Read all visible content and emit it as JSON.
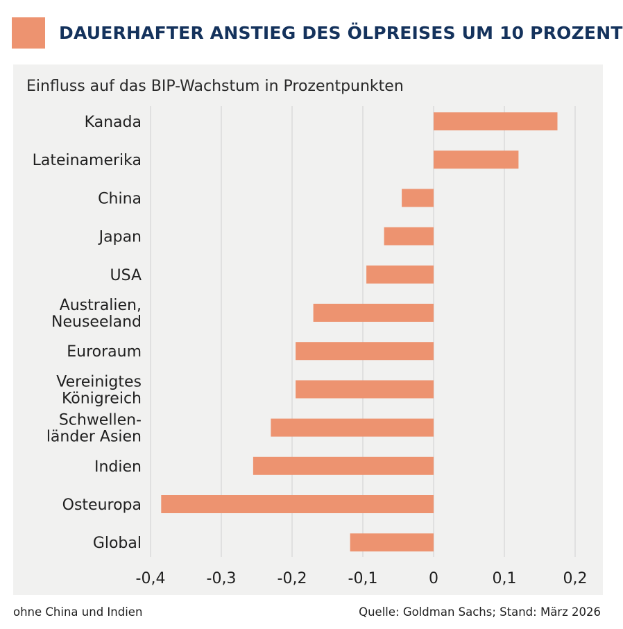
{
  "title": "DAUERHAFTER ANSTIEG DES ÖLPREISES UM 10 PROZENT",
  "subtitle": "Einfluss auf das BIP-Wachstum in Prozentpunkten",
  "footnote_left": "ohne China und Indien",
  "footnote_right": "Quelle: Goldman Sachs; Stand: März 2026",
  "colors": {
    "bar": "#ED9370",
    "title": "#14325C",
    "panel": "#F1F1F0",
    "grid": "#CFCFCF"
  },
  "chart_data": {
    "type": "bar",
    "orientation": "horizontal",
    "title": "DAUERHAFTER ANSTIEG DES ÖLPREISES UM 10 PROZENT",
    "xlabel": "Einfluss auf das BIP-Wachstum in Prozentpunkten",
    "categories": [
      [
        "Kanada"
      ],
      [
        "Lateinamerika"
      ],
      [
        "China"
      ],
      [
        "Japan"
      ],
      [
        "USA"
      ],
      [
        "Australien,",
        "Neuseeland"
      ],
      [
        "Euroraum"
      ],
      [
        "Vereinigtes",
        "Königreich"
      ],
      [
        "Schwellen-",
        "länder Asien"
      ],
      [
        "Indien"
      ],
      [
        "Osteuropa"
      ],
      [
        "Global"
      ]
    ],
    "values": [
      0.175,
      0.12,
      -0.045,
      -0.07,
      -0.095,
      -0.17,
      -0.195,
      -0.195,
      -0.23,
      -0.255,
      -0.385,
      -0.118
    ],
    "xlim": [
      -0.4,
      0.2
    ],
    "xticks": [
      -0.4,
      -0.3,
      -0.2,
      -0.1,
      0,
      0.1,
      0.2
    ],
    "xtick_labels": [
      "-0,4",
      "-0,3",
      "-0,2",
      "-0,1",
      "0",
      "0,1",
      "0,2"
    ],
    "grid": "vertical"
  }
}
